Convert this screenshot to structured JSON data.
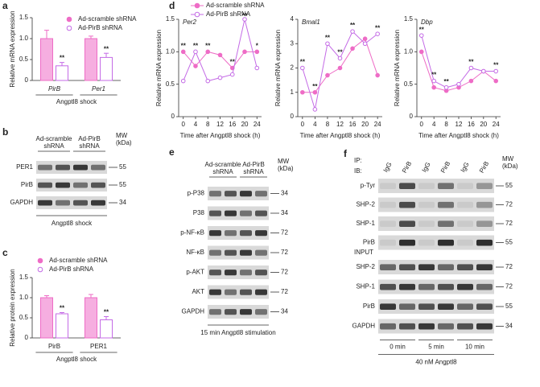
{
  "chart_data": [
    {
      "panel": "a",
      "type": "bar",
      "ylabel": "Relative mRNA expression",
      "xlabel": "Angptl8 shock",
      "categories": [
        "PirB",
        "Per1"
      ],
      "italic_categories": true,
      "legend": true,
      "series": [
        {
          "name": "Ad-scramble shRNA",
          "color": "#ee6cc6",
          "style": "filled",
          "values": [
            1.0,
            1.0
          ],
          "errors": [
            0.2,
            0.06
          ]
        },
        {
          "name": "Ad-PirB shRNA",
          "color": "#c46be6",
          "style": "open",
          "values": [
            0.35,
            0.55
          ],
          "errors": [
            0.08,
            0.1
          ]
        }
      ],
      "annotations": [
        "**",
        "**"
      ],
      "ylim": [
        0,
        1.5
      ],
      "yticks": [
        0,
        0.5,
        {
          "value": 1,
          "label": "1.0"
        },
        1.5
      ]
    },
    {
      "panel": "c",
      "type": "bar",
      "ylabel": "Relative protein expression",
      "xlabel": "Angptl8 shock",
      "categories": [
        "PirB",
        "PER1"
      ],
      "italic_categories": false,
      "legend": true,
      "series": [
        {
          "name": "Ad-scramble shRNA",
          "color": "#ee6cc6",
          "style": "filled",
          "values": [
            1.0,
            1.0
          ],
          "errors": [
            0.05,
            0.08
          ]
        },
        {
          "name": "Ad-PirB shRNA",
          "color": "#c46be6",
          "style": "open",
          "values": [
            0.6,
            0.45
          ],
          "errors": [
            0.03,
            0.08
          ]
        }
      ],
      "annotations": [
        "**",
        "**"
      ],
      "ylim": [
        0,
        1.5
      ],
      "yticks": [
        0,
        0.5,
        {
          "value": 1,
          "label": "1.0"
        },
        1.5
      ]
    },
    {
      "panel": "d",
      "type": "line",
      "title": "Per2",
      "ylabel": "Relative mRNA expression",
      "xlabel": "Time after Angptl8 shock (h)",
      "legend": true,
      "x": [
        0,
        4,
        8,
        12,
        16,
        20,
        24
      ],
      "series": [
        {
          "name": "Ad-scramble shRNA",
          "color": "#ee6cc6",
          "style": "filled",
          "values": [
            1.0,
            0.78,
            1.0,
            0.95,
            0.75,
            1.0,
            1.0
          ]
        },
        {
          "name": "Ad-PirB shRNA",
          "color": "#c46be6",
          "style": "open",
          "values": [
            0.55,
            1.0,
            0.55,
            0.6,
            0.65,
            1.5,
            0.75
          ]
        }
      ],
      "annotations": [
        "**",
        "**",
        "**",
        null,
        "**",
        "**",
        "*"
      ],
      "xlim": [
        -1.5,
        25.5
      ],
      "xticks": [
        0,
        4,
        8,
        12,
        16,
        20,
        24
      ],
      "ylim": [
        0,
        1.5
      ],
      "yticks": [
        0,
        0.5,
        {
          "value": 1,
          "label": "1.0"
        },
        1.5
      ]
    },
    {
      "type": "line",
      "title": "Bmal1",
      "ylabel": "Relative mRNA expression",
      "xlabel": "Time after Angptl8 shock (h)",
      "legend": false,
      "x": [
        0,
        4,
        8,
        12,
        16,
        20,
        24
      ],
      "series": [
        {
          "color": "#ee6cc6",
          "style": "filled",
          "values": [
            1.0,
            1.0,
            1.7,
            2.0,
            2.8,
            3.2,
            1.7
          ]
        },
        {
          "color": "#c46be6",
          "style": "open",
          "values": [
            2.0,
            0.3,
            3.0,
            2.4,
            3.5,
            3.0,
            3.4
          ]
        }
      ],
      "annotations": [
        "**",
        "**",
        "**",
        "**",
        "**",
        null,
        "**"
      ],
      "xlim": [
        -1.5,
        25.5
      ],
      "xticks": [
        0,
        4,
        8,
        12,
        16,
        20,
        24
      ],
      "ylim": [
        0,
        4
      ],
      "yticks": [
        0,
        1,
        2,
        3,
        4
      ]
    },
    {
      "type": "line",
      "title": "Dbp",
      "ylabel": "Relative mRNA expression",
      "xlabel": "Time after Angptl8 shock (h)",
      "legend": false,
      "x": [
        0,
        4,
        8,
        12,
        16,
        20,
        24
      ],
      "series": [
        {
          "color": "#ee6cc6",
          "style": "filled",
          "values": [
            1.0,
            0.45,
            0.4,
            0.45,
            0.55,
            0.7,
            0.55
          ]
        },
        {
          "color": "#c46be6",
          "style": "open",
          "values": [
            1.25,
            0.55,
            0.45,
            0.5,
            0.75,
            0.7,
            0.7
          ]
        }
      ],
      "annotations": [
        "**",
        "**",
        "**",
        null,
        "**",
        null,
        "**"
      ],
      "xlim": [
        -1.5,
        25.5
      ],
      "xticks": [
        0,
        4,
        8,
        12,
        16,
        20,
        24
      ],
      "ylim": [
        0,
        1.5
      ],
      "yticks": [
        0,
        0.5,
        {
          "value": 1,
          "label": "1.0"
        },
        1.5
      ]
    }
  ],
  "blots": {
    "b": {
      "panel": "b",
      "groups": [
        [
          "Ad-scramble",
          "shRNA"
        ],
        [
          "Ad-PirB",
          "shRNA"
        ]
      ],
      "mw_header": [
        "MW",
        "(kDa)"
      ],
      "rows": [
        {
          "label": "PER1",
          "mw": 55
        },
        {
          "label": "PirB",
          "mw": 55
        },
        {
          "label": "GAPDH",
          "mw": 34
        }
      ],
      "footer": "Angptl8 shock"
    },
    "e": {
      "panel": "e",
      "groups": [
        [
          "Ad-scramble",
          "shRNA"
        ],
        [
          "Ad-PirB",
          "shRNA"
        ]
      ],
      "mw_header": [
        "MW",
        "(kDa)"
      ],
      "rows": [
        {
          "label": "p-P38",
          "mw": 34
        },
        {
          "label": "P38",
          "mw": 34
        },
        {
          "label": "p-NF-κB",
          "mw": 72
        },
        {
          "label": "NF-κB",
          "mw": 72
        },
        {
          "label": "p-AKT",
          "mw": 72
        },
        {
          "label": "AKT",
          "mw": 72
        },
        {
          "label": "GAPDH",
          "mw": 34
        }
      ],
      "footer": "15 min Angptl8 stimulation"
    },
    "f": {
      "panel": "f",
      "ip_label": "IP:",
      "ib_label": "IB:",
      "lanes": [
        "IgG",
        "PirB",
        "IgG",
        "PirB",
        "IgG",
        "PirB"
      ],
      "mw_header": [
        "MW",
        "(kDa)"
      ],
      "ip_rows": [
        {
          "label": "p-Tyr",
          "mw": 55
        },
        {
          "label": "SHP-2",
          "mw": 72
        },
        {
          "label": "SHP-1",
          "mw": 72
        },
        {
          "label": "PirB",
          "mw": 55
        }
      ],
      "input_label": "INPUT",
      "input_rows": [
        {
          "label": "SHP-2",
          "mw": 72
        },
        {
          "label": "SHP-1",
          "mw": 72
        },
        {
          "label": "PirB",
          "mw": 55
        },
        {
          "label": "GAPDH",
          "mw": 34
        }
      ],
      "times": [
        "0 min",
        "5 min",
        "10 min"
      ],
      "footer": "40 nM Angptl8"
    }
  }
}
